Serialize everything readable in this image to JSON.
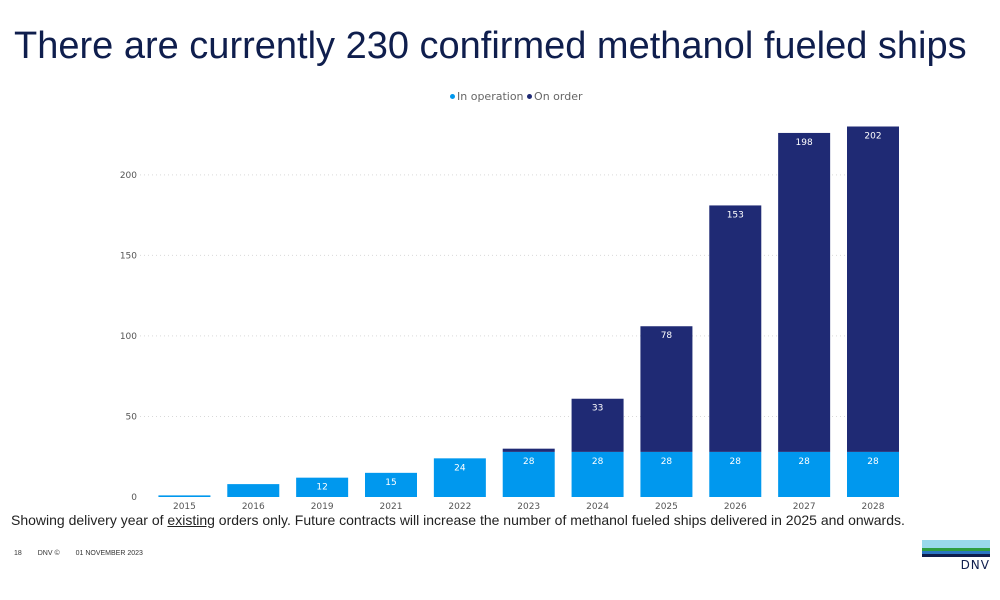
{
  "slide": {
    "title": "There are currently 230 confirmed methanol fueled ships",
    "footnote_pre": "Showing delivery year of ",
    "footnote_underlined": "existing",
    "footnote_post": " orders only. Future contracts will increase the number of methanol fueled ships delivered in 2025 and onwards.",
    "footer_page": "18",
    "footer_org": "DNV ©",
    "footer_date": "01 NOVEMBER 2023",
    "logo_text": "DNV"
  },
  "colors": {
    "in_operation": "#0098ee",
    "on_order": "#1f2a74",
    "grid": "#d9d9d9",
    "axis_text": "#555555",
    "logo_stripes": [
      "#99d9ea",
      "#2f9e3f",
      "#2a76c2",
      "#0f1e4d"
    ]
  },
  "chart_data": {
    "type": "bar",
    "stacked": true,
    "categories": [
      "2015",
      "2016",
      "2019",
      "2021",
      "2022",
      "2023",
      "2024",
      "2025",
      "2026",
      "2027",
      "2028"
    ],
    "series": [
      {
        "name": "In operation",
        "values": [
          1,
          8,
          12,
          15,
          24,
          28,
          28,
          28,
          28,
          28,
          28
        ]
      },
      {
        "name": "On order",
        "values": [
          0,
          0,
          0,
          0,
          0,
          2,
          33,
          78,
          153,
          198,
          202
        ]
      }
    ],
    "data_labels": {
      "In operation": [
        "",
        "",
        "12",
        "15",
        "24",
        "28",
        "28",
        "28",
        "28",
        "28",
        "28"
      ],
      "On order": [
        "",
        "",
        "",
        "",
        "",
        "",
        "33",
        "78",
        "153",
        "198",
        "202"
      ]
    },
    "yticks": [
      0,
      50,
      100,
      150,
      200
    ],
    "ylim": [
      0,
      230
    ],
    "grid": true,
    "legend": "top-center"
  }
}
